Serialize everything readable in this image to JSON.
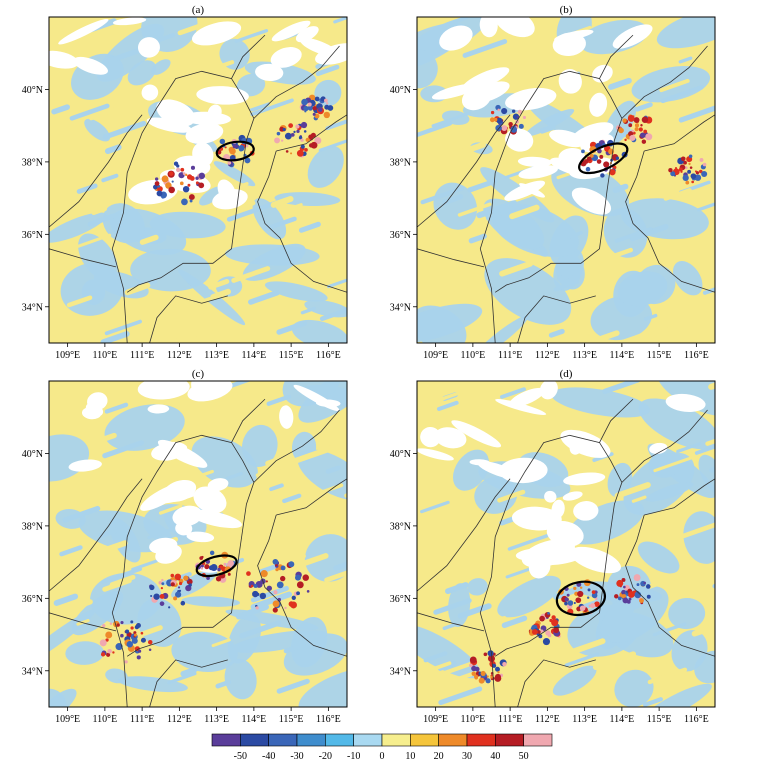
{
  "chart_data": {
    "type": "heatmap",
    "colors": {
      "land_yellow": "#f6e98a",
      "light_blue": "#a9d3ec",
      "border_line": "#333333",
      "ellipse": "#000000"
    },
    "panels": [
      {
        "label": "(a)",
        "x_ticks": [
          "109°E",
          "110°E",
          "111°E",
          "112°E",
          "113°E",
          "114°E",
          "115°E",
          "116°E"
        ],
        "y_ticks": [
          "34°N",
          "36°N",
          "38°N",
          "40°N"
        ],
        "ellipse": {
          "lon": 113.5,
          "lat": 38.3,
          "rx_deg": 0.5,
          "ry_deg": 0.25,
          "angle": -8
        },
        "hotspots": [
          {
            "lon": 113.5,
            "lat": 38.3,
            "r": 0.5
          },
          {
            "lon": 115.2,
            "lat": 38.6,
            "r": 0.6
          },
          {
            "lon": 115.7,
            "lat": 39.5,
            "r": 0.4
          },
          {
            "lon": 112.0,
            "lat": 37.4,
            "r": 0.7
          }
        ]
      },
      {
        "label": "(b)",
        "x_ticks": [
          "109°E",
          "110°E",
          "111°E",
          "112°E",
          "113°E",
          "114°E",
          "115°E",
          "116°E"
        ],
        "y_ticks": [
          "34°N",
          "36°N",
          "38°N",
          "40°N"
        ],
        "ellipse": {
          "lon": 113.5,
          "lat": 38.1,
          "rx_deg": 0.7,
          "ry_deg": 0.3,
          "angle": -25
        },
        "hotspots": [
          {
            "lon": 113.5,
            "lat": 38.1,
            "r": 0.6
          },
          {
            "lon": 114.4,
            "lat": 38.9,
            "r": 0.5
          },
          {
            "lon": 115.8,
            "lat": 37.8,
            "r": 0.5
          },
          {
            "lon": 110.9,
            "lat": 39.2,
            "r": 0.5
          }
        ]
      },
      {
        "label": "(c)",
        "x_ticks": [
          "109°E",
          "110°E",
          "111°E",
          "112°E",
          "113°E",
          "114°E",
          "115°E",
          "116°E"
        ],
        "y_ticks": [
          "34°N",
          "36°N",
          "38°N",
          "40°N"
        ],
        "ellipse": {
          "lon": 113.0,
          "lat": 36.9,
          "rx_deg": 0.55,
          "ry_deg": 0.25,
          "angle": -15
        },
        "hotspots": [
          {
            "lon": 113.0,
            "lat": 36.9,
            "r": 0.5
          },
          {
            "lon": 114.6,
            "lat": 36.3,
            "r": 0.9
          },
          {
            "lon": 110.5,
            "lat": 34.8,
            "r": 0.8
          },
          {
            "lon": 111.8,
            "lat": 36.2,
            "r": 0.6
          }
        ]
      },
      {
        "label": "(d)",
        "x_ticks": [
          "109°E",
          "110°E",
          "111°E",
          "112°E",
          "113°E",
          "114°E",
          "115°E",
          "116°E"
        ],
        "y_ticks": [
          "34°N",
          "36°N",
          "38°N",
          "40°N"
        ],
        "ellipse": {
          "lon": 112.9,
          "lat": 36.0,
          "rx_deg": 0.65,
          "ry_deg": 0.45,
          "angle": -10
        },
        "hotspots": [
          {
            "lon": 112.9,
            "lat": 36.0,
            "r": 0.6
          },
          {
            "lon": 114.3,
            "lat": 36.2,
            "r": 0.5
          },
          {
            "lon": 110.4,
            "lat": 34.1,
            "r": 0.5
          },
          {
            "lon": 112.0,
            "lat": 35.2,
            "r": 0.5
          }
        ]
      }
    ],
    "x_range": [
      108.5,
      116.5
    ],
    "y_range": [
      33.0,
      42.0
    ],
    "colorbar": {
      "levels": [
        "-50",
        "-40",
        "-30",
        "-20",
        "-10",
        "0",
        "10",
        "20",
        "30",
        "40",
        "50"
      ],
      "colors": [
        "#5a3d9a",
        "#2b4aa3",
        "#3a66b8",
        "#3f8dcd",
        "#53b9e8",
        "#a9d9f1",
        "#f6ee8e",
        "#f5c53b",
        "#ee8a2a",
        "#e0311f",
        "#b51d24",
        "#f0a8b0"
      ]
    }
  }
}
